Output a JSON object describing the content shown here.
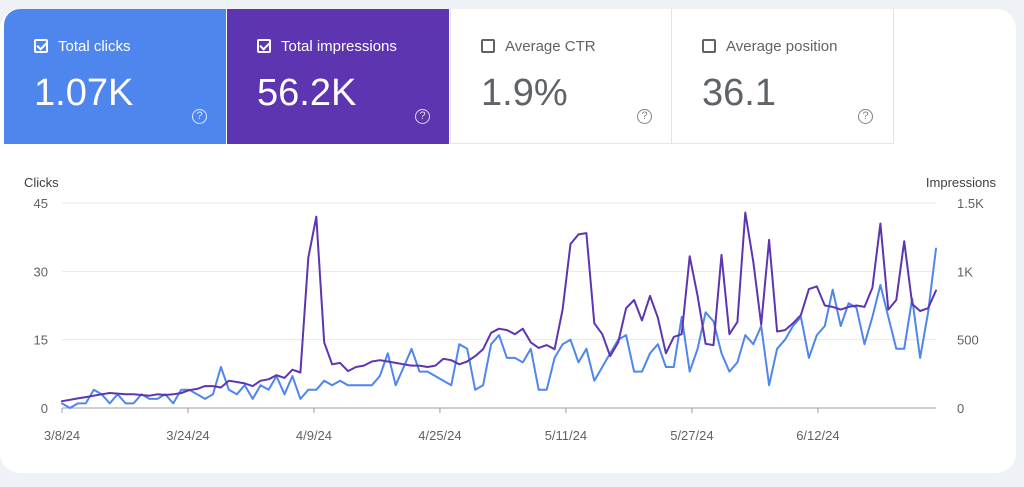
{
  "metrics": [
    {
      "label": "Total clicks",
      "value": "1.07K",
      "selected": true,
      "help": "?"
    },
    {
      "label": "Total impressions",
      "value": "56.2K",
      "selected": true,
      "help": "?"
    },
    {
      "label": "Average CTR",
      "value": "1.9%",
      "selected": false,
      "help": "?"
    },
    {
      "label": "Average position",
      "value": "36.1",
      "selected": false,
      "help": "?"
    }
  ],
  "colors": {
    "clicks": "#4f86ee",
    "impressions": "#5e35b1",
    "grid": "#e6e8ea",
    "axis": "#9aa0a6"
  },
  "chart_data": {
    "type": "line",
    "ylabel_left": "Clicks",
    "ylabel_right": "Impressions",
    "ylim_left": [
      0,
      45
    ],
    "ylim_right": [
      0,
      1500
    ],
    "yticks_left": [
      {
        "value": 0,
        "label": "0"
      },
      {
        "value": 15,
        "label": "15"
      },
      {
        "value": 30,
        "label": "30"
      },
      {
        "value": 45,
        "label": "45"
      }
    ],
    "yticks_right": [
      {
        "value": 0,
        "label": "0"
      },
      {
        "value": 500,
        "label": "500"
      },
      {
        "value": 1000,
        "label": "1K"
      },
      {
        "value": 1500,
        "label": "1.5K"
      }
    ],
    "x_start": "2024-03-08",
    "x_end": "2024-06-27",
    "x_ticks": [
      {
        "date": "2024-03-08",
        "label": "3/8/24"
      },
      {
        "date": "2024-03-24",
        "label": "3/24/24"
      },
      {
        "date": "2024-04-09",
        "label": "4/9/24"
      },
      {
        "date": "2024-04-25",
        "label": "4/25/24"
      },
      {
        "date": "2024-05-11",
        "label": "5/11/24"
      },
      {
        "date": "2024-05-27",
        "label": "5/27/24"
      },
      {
        "date": "2024-06-12",
        "label": "6/12/24"
      }
    ],
    "grid": true,
    "legend": "none",
    "series": [
      {
        "axis": "left",
        "color": "#4f86ee",
        "values": [
          1,
          0,
          1,
          1,
          4,
          3,
          1,
          3,
          1,
          1,
          3,
          2,
          2,
          3,
          1,
          4,
          4,
          3,
          2,
          3,
          9,
          4,
          3,
          5,
          2,
          5,
          4,
          7,
          3,
          7,
          2,
          4,
          4,
          6,
          5,
          6,
          5,
          5,
          5,
          5,
          7,
          12,
          5,
          9,
          13,
          8,
          8,
          7,
          6,
          5,
          14,
          13,
          4,
          5,
          14,
          16,
          11,
          11,
          10,
          13,
          4,
          4,
          11,
          14,
          15,
          10,
          13,
          6,
          9,
          12,
          15,
          16,
          8,
          8,
          12,
          14,
          9,
          9,
          20,
          8,
          13,
          21,
          19,
          12,
          8,
          10,
          16,
          14,
          18,
          5,
          13,
          15,
          18,
          20,
          11,
          16,
          18,
          26,
          18,
          23,
          22,
          14,
          20,
          27,
          20,
          13,
          13,
          24,
          11,
          21,
          35
        ],
        "y_unit_hint": "clicks"
      },
      {
        "axis": "right",
        "color": "#5e35b1",
        "values": [
          50,
          60,
          70,
          80,
          90,
          100,
          110,
          105,
          100,
          100,
          95,
          90,
          100,
          95,
          100,
          110,
          130,
          140,
          160,
          160,
          150,
          200,
          190,
          180,
          160,
          200,
          210,
          240,
          220,
          280,
          260,
          1100,
          1400,
          480,
          320,
          330,
          270,
          300,
          310,
          340,
          350,
          340,
          330,
          320,
          310,
          310,
          300,
          310,
          360,
          350,
          320,
          340,
          380,
          430,
          550,
          580,
          570,
          540,
          580,
          480,
          440,
          460,
          430,
          720,
          1200,
          1270,
          1280,
          620,
          540,
          380,
          480,
          730,
          790,
          640,
          820,
          660,
          400,
          520,
          540,
          1110,
          820,
          470,
          460,
          1120,
          540,
          630,
          1430,
          1070,
          610,
          1230,
          560,
          570,
          620,
          680,
          870,
          890,
          750,
          740,
          720,
          740,
          750,
          740,
          880,
          1350,
          720,
          790,
          1220,
          760,
          710,
          730,
          860
        ],
        "y_unit_hint": "impressions"
      }
    ]
  }
}
